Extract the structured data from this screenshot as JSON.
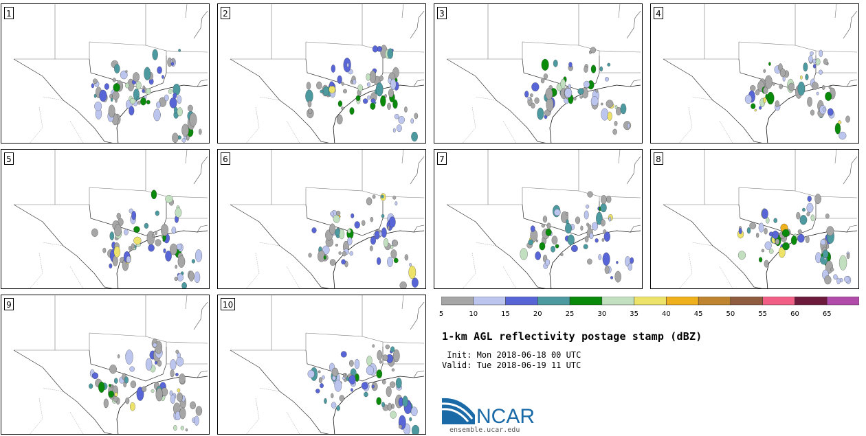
{
  "panels": [
    {
      "label": "1"
    },
    {
      "label": "2"
    },
    {
      "label": "3"
    },
    {
      "label": "4"
    },
    {
      "label": "5"
    },
    {
      "label": "6"
    },
    {
      "label": "7"
    },
    {
      "label": "8"
    },
    {
      "label": "9"
    },
    {
      "label": "10"
    }
  ],
  "legend": {
    "ticks": [
      "5",
      "10",
      "15",
      "20",
      "25",
      "30",
      "35",
      "40",
      "45",
      "50",
      "55",
      "60",
      "65"
    ],
    "colors": [
      "#a6a6a6",
      "#bcc5ee",
      "#5865d6",
      "#4c9aa0",
      "#0a8a0a",
      "#c2e0c0",
      "#ede36b",
      "#efb01e",
      "#bf8430",
      "#8f5c3f",
      "#f25f86",
      "#6d1b3c",
      "#b24cab"
    ]
  },
  "title": "1-km AGL reflectivity postage stamp (dBZ)",
  "init": " Init: Mon 2018-06-18 00 UTC",
  "valid": "Valid: Tue 2018-06-19 11 UTC",
  "logo_text": "NCAR",
  "site": "ensemble.ucar.edu"
}
